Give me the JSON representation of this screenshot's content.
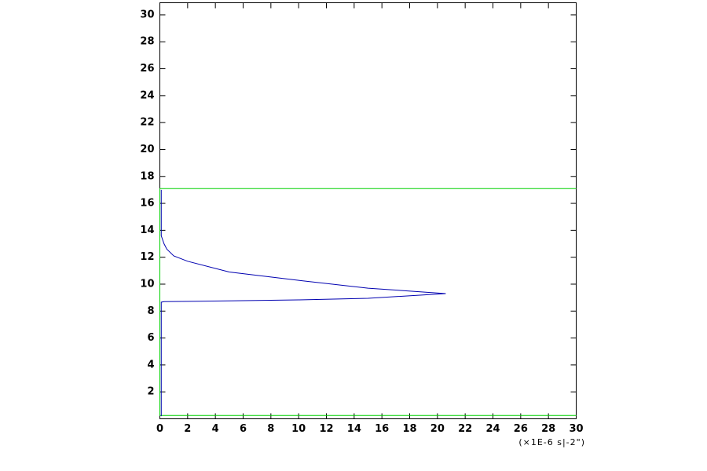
{
  "chart_data": {
    "type": "line",
    "x_label": "(×1E-6  s|-2\")",
    "xlim": [
      0,
      30
    ],
    "ylim": [
      0,
      30.9
    ],
    "xticks": [
      0,
      2,
      4,
      6,
      8,
      10,
      12,
      14,
      16,
      18,
      20,
      22,
      24,
      26,
      28,
      30
    ],
    "yticks": [
      2,
      4,
      6,
      8,
      10,
      12,
      14,
      16,
      18,
      20,
      22,
      24,
      26,
      28,
      30
    ],
    "series": [
      {
        "color": "#00d000",
        "x": [
          30,
          0,
          0,
          30
        ],
        "values": [
          17.1,
          17.1,
          0.25,
          0.25
        ]
      },
      {
        "color": "#0000b0",
        "x": [
          0.1,
          0.1,
          0.3,
          5,
          10,
          15,
          20.6,
          15,
          10,
          5,
          2,
          1,
          0.5,
          0.3,
          0.1,
          0.1
        ],
        "values": [
          0.2,
          8.66,
          8.7,
          8.76,
          8.83,
          8.95,
          9.3,
          9.7,
          10.28,
          10.9,
          11.7,
          12.1,
          12.6,
          13.0,
          13.6,
          17.0
        ]
      }
    ]
  }
}
